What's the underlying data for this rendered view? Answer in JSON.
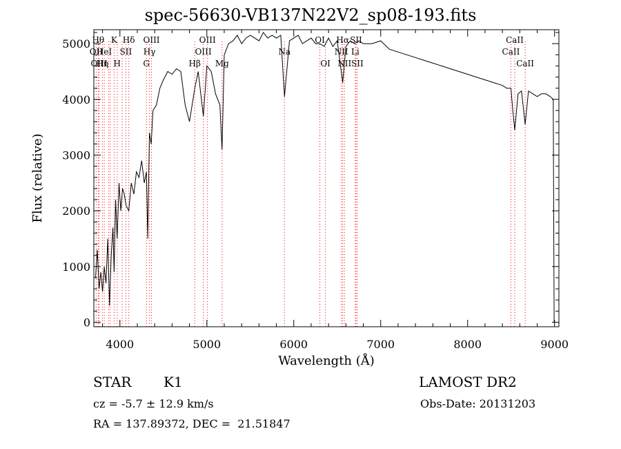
{
  "chart_data": {
    "type": "line",
    "title": "spec-56630-VB137N22V2_sp08-193.fits",
    "xlabel": "Wavelength (Å)",
    "ylabel": "Flux (relative)",
    "xlim": [
      3700,
      9050
    ],
    "ylim": [
      -80,
      5250
    ],
    "xticks": [
      4000,
      5000,
      6000,
      7000,
      8000,
      9000
    ],
    "yticks": [
      0,
      1000,
      2000,
      3000,
      4000,
      5000
    ],
    "grid": false,
    "line_color": "#000000",
    "marker_color": "#ff0000",
    "series": [
      {
        "x": [
          3720,
          3740,
          3760,
          3780,
          3800,
          3820,
          3840,
          3860,
          3880,
          3900,
          3920,
          3933,
          3950,
          3968,
          3990,
          4010,
          4030,
          4050,
          4070,
          4102,
          4130,
          4160,
          4190,
          4220,
          4250,
          4280,
          4305,
          4320,
          4340,
          4360,
          4380,
          4420,
          4460,
          4500,
          4550,
          4600,
          4650,
          4700,
          4750,
          4800,
          4861,
          4900,
          4960,
          5000,
          5050,
          5100,
          5150,
          5175,
          5200,
          5250,
          5300,
          5350,
          5400,
          5450,
          5500,
          5550,
          5600,
          5650,
          5700,
          5750,
          5800,
          5850,
          5893,
          5950,
          6000,
          6050,
          6100,
          6150,
          6200,
          6250,
          6300,
          6350,
          6400,
          6450,
          6500,
          6563,
          6600,
          6650,
          6700,
          6750,
          6800,
          6900,
          7000,
          7100,
          7200,
          7300,
          7400,
          7500,
          7600,
          7700,
          7800,
          7900,
          8000,
          8100,
          8200,
          8300,
          8400,
          8450,
          8498,
          8520,
          8542,
          8580,
          8620,
          8662,
          8700,
          8750,
          8800,
          8850,
          8900,
          8950,
          8985,
          8995
        ],
        "values": [
          800,
          1300,
          600,
          900,
          550,
          1000,
          700,
          1500,
          300,
          1200,
          1700,
          900,
          2200,
          1500,
          2500,
          2000,
          2400,
          2300,
          2100,
          2000,
          2500,
          2300,
          2700,
          2600,
          2900,
          2500,
          2700,
          1500,
          3400,
          3200,
          3800,
          3900,
          4200,
          4350,
          4500,
          4450,
          4550,
          4500,
          3900,
          3600,
          4200,
          4500,
          3700,
          4600,
          4500,
          4100,
          3900,
          3100,
          4800,
          5000,
          5050,
          5150,
          5000,
          5100,
          5150,
          5100,
          5050,
          5200,
          5100,
          5150,
          5100,
          5150,
          4050,
          5050,
          5100,
          5150,
          5000,
          5050,
          5100,
          5000,
          5000,
          4950,
          5100,
          4950,
          5050,
          4300,
          4950,
          5050,
          5000,
          5050,
          5000,
          5000,
          5050,
          4900,
          4850,
          4800,
          4750,
          4700,
          4650,
          4600,
          4550,
          4500,
          4450,
          4400,
          4350,
          4300,
          4250,
          4200,
          4200,
          3800,
          3450,
          4100,
          4150,
          3550,
          4150,
          4100,
          4050,
          4100,
          4100,
          4050,
          4000,
          0
        ]
      }
    ],
    "line_markers": [
      {
        "x": 3727,
        "label": "OII",
        "row": 1
      },
      {
        "x": 3750,
        "label": "Hθ",
        "row": 0
      },
      {
        "x": 3760,
        "label": "OIII",
        "row": 2
      },
      {
        "x": 3798,
        "label": "Hη",
        "row": 2
      },
      {
        "x": 3820,
        "label": "HeI",
        "row": 1
      },
      {
        "x": 3869,
        "label": "",
        "row": -1
      },
      {
        "x": 3889,
        "label": "",
        "row": -1
      },
      {
        "x": 3933,
        "label": "K",
        "row": 0
      },
      {
        "x": 3968,
        "label": "H",
        "row": 2
      },
      {
        "x": 4026,
        "label": "",
        "row": -1
      },
      {
        "x": 4068,
        "label": "SII",
        "row": 1
      },
      {
        "x": 4102,
        "label": "Hδ",
        "row": 0
      },
      {
        "x": 4305,
        "label": "G",
        "row": 2
      },
      {
        "x": 4340,
        "label": "Hγ",
        "row": 1
      },
      {
        "x": 4363,
        "label": "OIII",
        "row": 0
      },
      {
        "x": 4861,
        "label": "Hβ",
        "row": 2
      },
      {
        "x": 4959,
        "label": "OIII",
        "row": 1
      },
      {
        "x": 5007,
        "label": "OIII",
        "row": 0
      },
      {
        "x": 5175,
        "label": "Mg",
        "row": 2
      },
      {
        "x": 5893,
        "label": "Na",
        "row": 1
      },
      {
        "x": 6300,
        "label": "OI",
        "row": 0
      },
      {
        "x": 6364,
        "label": "OI",
        "row": 2
      },
      {
        "x": 6548,
        "label": "NII",
        "row": 1
      },
      {
        "x": 6563,
        "label": "Hα",
        "row": 0
      },
      {
        "x": 6583,
        "label": "NII",
        "row": 2
      },
      {
        "x": 6708,
        "label": "Li",
        "row": 1
      },
      {
        "x": 6716,
        "label": "SII",
        "row": 0
      },
      {
        "x": 6731,
        "label": "SII",
        "row": 2
      },
      {
        "x": 8498,
        "label": "CaII",
        "row": 1
      },
      {
        "x": 8542,
        "label": "CaII",
        "row": 0
      },
      {
        "x": 8662,
        "label": "CaII",
        "row": 2
      }
    ]
  },
  "info": {
    "object_class": "STAR",
    "subclass": "K1",
    "survey": "LAMOST DR2",
    "redshift": "cz = -5.7 ± 12.9 km/s",
    "obs_date": "Obs-Date: 20131203",
    "coords": "RA = 137.89372, DEC =  21.51847"
  }
}
